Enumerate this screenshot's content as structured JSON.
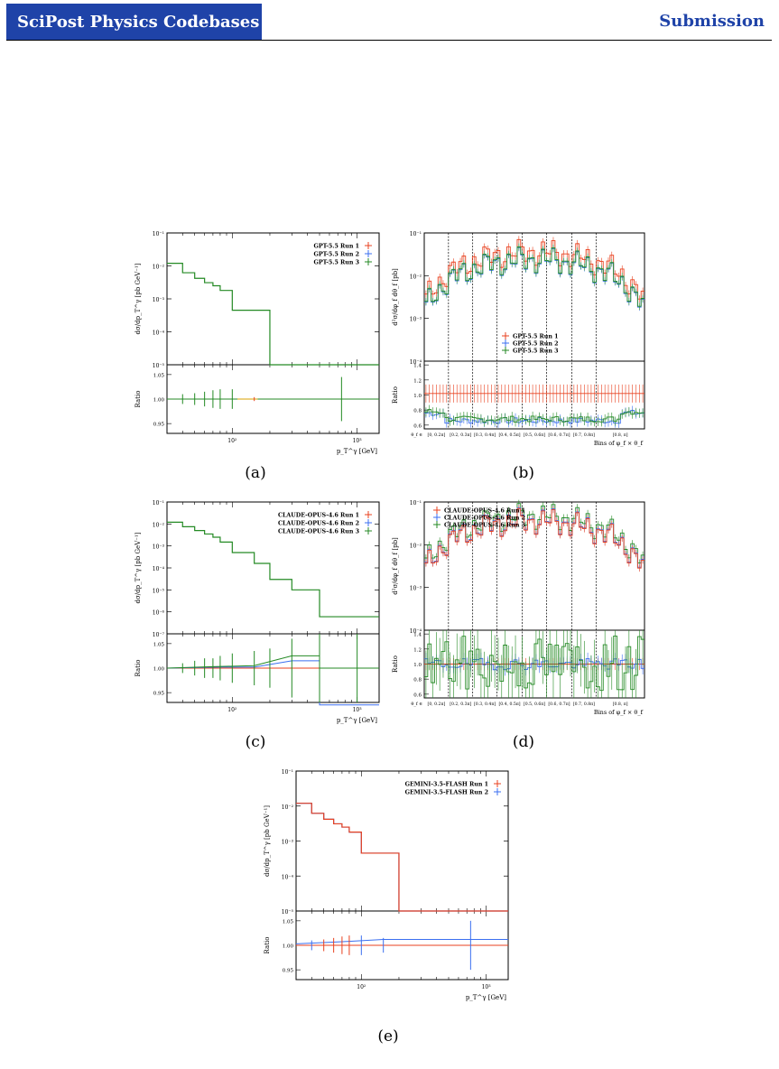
{
  "header": {
    "title": "SciPost Physics Codebases",
    "section": "Submission"
  },
  "colors": {
    "run1": "#e8411f",
    "run2": "#3b6ff0",
    "run3": "#248a24",
    "brand": "#1f43a8"
  },
  "panels": {
    "a": {
      "caption": "(a)",
      "ylabel": "dσ/dp_T^γ [pb GeV⁻¹]",
      "xlabel": "p_T^γ [GeV]",
      "legend": [
        "GPT-5.5 Run 1",
        "GPT-5.5 Run 2",
        "GPT-5.5 Run 3"
      ],
      "main_ticks": [
        "10⁻¹",
        "10⁻²",
        "10⁻³",
        "10⁻⁴",
        "10⁻⁵"
      ],
      "ratio_label": "Ratio",
      "ratio_ticks": [
        "1.05",
        "1.00",
        "0.95"
      ],
      "x_ticks": [
        "10²",
        "10³"
      ]
    },
    "b": {
      "caption": "(b)",
      "ylabel": "d²σ/dφ_f dθ_f [pb]",
      "xlabel": "Bins of φ_f × θ_f",
      "legend": [
        "GPT-5.5 Run 1",
        "GPT-5.5 Run 2",
        "GPT-5.5 Run 3"
      ],
      "main_ticks": [
        "10⁻¹",
        "10⁻²",
        "10⁻³",
        "10⁻⁴"
      ],
      "ratio_label": "Ratio",
      "ratio_ticks": [
        "1.4",
        "1.2",
        "1.0",
        "0.8",
        "0.6"
      ],
      "bin_prefix": "θ_f ∈",
      "bin_labels": [
        "[0, 0.2π]",
        "[0.2, 0.3π]",
        "[0.3, 0.4π]",
        "[0.4, 0.5π]",
        "[0.5, 0.6π]",
        "[0.6, 0.7π]",
        "[0.7, 0.8π]",
        "[0.8, π]"
      ]
    },
    "c": {
      "caption": "(c)",
      "ylabel": "dσ/dp_T^γ [pb GeV⁻¹]",
      "xlabel": "p_T^γ [GeV]",
      "legend": [
        "CLAUDE-OPUS-4.6 Run 1",
        "CLAUDE-OPUS-4.6 Run 2",
        "CLAUDE-OPUS-4.6 Run 3"
      ],
      "main_ticks": [
        "10⁻¹",
        "10⁻²",
        "10⁻³",
        "10⁻⁴",
        "10⁻⁵",
        "10⁻⁶",
        "10⁻⁷"
      ],
      "ratio_label": "Ratio",
      "ratio_ticks": [
        "1.05",
        "1.00",
        "0.95"
      ],
      "x_ticks": [
        "10²",
        "10³"
      ]
    },
    "d": {
      "caption": "(d)",
      "ylabel": "d²σ/dφ_f dθ_f [pb]",
      "xlabel": "Bins of φ_f × θ_f",
      "legend": [
        "CLAUDE-OPUS-4.6 Run 1",
        "CLAUDE-OPUS-4.6 Run 2",
        "CLAUDE-OPUS-4.6 Run 3"
      ],
      "main_ticks": [
        "10⁻¹",
        "10⁻²",
        "10⁻³",
        "10⁻⁴"
      ],
      "ratio_label": "Ratio",
      "ratio_ticks": [
        "1.4",
        "1.2",
        "1.0",
        "0.8",
        "0.6"
      ],
      "bin_prefix": "θ_f ∈",
      "bin_labels": [
        "[0, 0.2π]",
        "[0.2, 0.3π]",
        "[0.3, 0.4π]",
        "[0.4, 0.5π]",
        "[0.5, 0.6π]",
        "[0.6, 0.7π]",
        "[0.7, 0.8π]",
        "[0.8, π]"
      ]
    },
    "e": {
      "caption": "(e)",
      "ylabel": "dσ/dp_T^γ [pb GeV⁻¹]",
      "xlabel": "p_T^γ [GeV]",
      "legend": [
        "GEMINI-3.5-FLASH Run 1",
        "GEMINI-3.5-FLASH Run 2"
      ],
      "main_ticks": [
        "10⁻¹",
        "10⁻²",
        "10⁻³",
        "10⁻⁴",
        "10⁻⁵"
      ],
      "ratio_label": "Ratio",
      "ratio_ticks": [
        "1.05",
        "1.00",
        "0.95"
      ],
      "x_ticks": [
        "10²",
        "10³"
      ]
    }
  },
  "chart_data": [
    {
      "panel": "a",
      "type": "line",
      "x_scale": "log",
      "y_scale": "log",
      "x_edges": [
        30,
        40,
        50,
        60,
        70,
        80,
        100,
        150,
        200,
        1500
      ],
      "series": [
        {
          "name": "GPT-5.5 Run 3",
          "values": [
            0.012,
            0.0062,
            0.0042,
            0.0031,
            0.0025,
            0.0018,
            0.00045,
            0.00045,
            1e-05
          ]
        }
      ],
      "ratio_ylim": [
        0.93,
        1.07
      ]
    },
    {
      "panel": "b",
      "type": "line",
      "y_scale": "log",
      "series": [
        {
          "name": "GPT-5.5 Run 1",
          "ratio": 1.02
        },
        {
          "name": "GPT-5.5 Run 2",
          "ratio": 0.66
        },
        {
          "name": "GPT-5.5 Run 3",
          "ratio": 0.68
        }
      ],
      "ratio_ylim": [
        0.55,
        1.45
      ]
    },
    {
      "panel": "c",
      "type": "line",
      "x_scale": "log",
      "y_scale": "log",
      "x_edges": [
        30,
        40,
        50,
        60,
        70,
        80,
        100,
        150,
        200,
        300,
        500,
        1500
      ],
      "series": [
        {
          "name": "CLAUDE-OPUS-4.6 Run 3",
          "values": [
            0.012,
            0.0075,
            0.005,
            0.0035,
            0.0025,
            0.0015,
            0.0005,
            0.00016,
            3e-05,
            1e-05,
            6e-07
          ]
        }
      ],
      "ratio_ylim": [
        0.93,
        1.07
      ]
    },
    {
      "panel": "d",
      "type": "line",
      "y_scale": "log",
      "series": [
        {
          "name": "CLAUDE-OPUS-4.6 Run 1",
          "ratio": 1.0
        },
        {
          "name": "CLAUDE-OPUS-4.6 Run 2",
          "ratio": 1.0
        },
        {
          "name": "CLAUDE-OPUS-4.6 Run 3",
          "ratio": 1.0
        }
      ],
      "ratio_ylim": [
        0.55,
        1.45
      ]
    },
    {
      "panel": "e",
      "type": "line",
      "x_scale": "log",
      "y_scale": "log",
      "x_edges": [
        30,
        40,
        50,
        60,
        70,
        80,
        100,
        150,
        200,
        1500
      ],
      "series": [
        {
          "name": "GEMINI-3.5-FLASH Run 1",
          "values": [
            0.012,
            0.0062,
            0.0042,
            0.0031,
            0.0025,
            0.0018,
            0.00045,
            0.00045,
            1e-05
          ]
        },
        {
          "name": "GEMINI-3.5-FLASH Run 2",
          "values": [
            0.012,
            0.0062,
            0.0042,
            0.0031,
            0.0025,
            0.0018,
            0.00045,
            0.00045,
            1e-05
          ]
        }
      ],
      "ratio_ylim": [
        0.93,
        1.07
      ]
    }
  ]
}
